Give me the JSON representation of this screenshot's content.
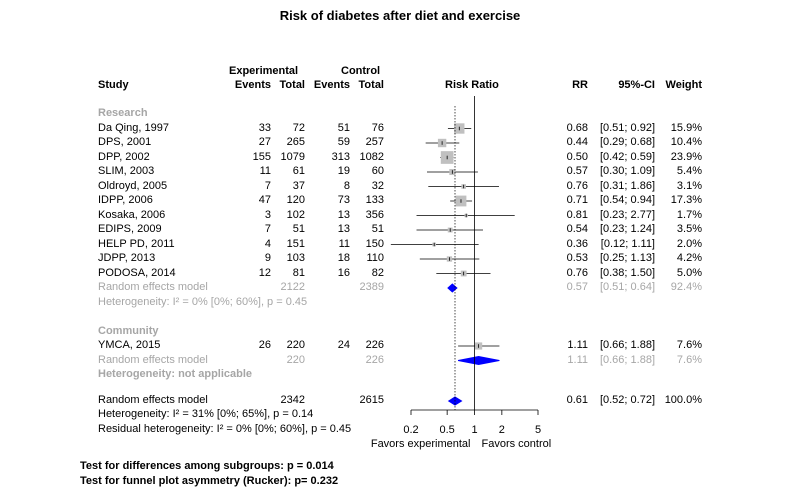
{
  "title": "Risk of diabetes after diet and exercise",
  "headers": {
    "experimental": "Experimental",
    "control": "Control",
    "study": "Study",
    "events": "Events",
    "total": "Total",
    "risk_ratio": "Risk Ratio",
    "rr": "RR",
    "ci": "95%-CI",
    "weight": "Weight"
  },
  "colors": {
    "square": "#c0c0c0",
    "diamond": "#0000ff",
    "grey_text": "#a6a6a6"
  },
  "chart_data": {
    "type": "forest",
    "title": "Risk of diabetes after diet and exercise",
    "xlabel_left": "Favors experimental",
    "xlabel_right": "Favors control",
    "x_scale": "log",
    "xlim": [
      0.2,
      5
    ],
    "xticks": [
      0.2,
      0.5,
      1,
      2,
      5
    ],
    "xtick_labels": [
      "0.2",
      "0.5",
      "1",
      "2",
      "5"
    ],
    "null_line": 1,
    "overall_line": 0.61,
    "subgroups": [
      {
        "name": "Research",
        "studies": [
          {
            "study": "Da Qing, 1997",
            "e_events": 33,
            "e_total": 72,
            "c_events": 51,
            "c_total": 76,
            "rr": 0.68,
            "lower": 0.51,
            "upper": 0.92,
            "rr_text": "0.68",
            "ci_text": "[0.51; 0.92]",
            "weight": 15.9,
            "weight_text": "15.9%"
          },
          {
            "study": "DPS, 2001",
            "e_events": 27,
            "e_total": 265,
            "c_events": 59,
            "c_total": 257,
            "rr": 0.44,
            "lower": 0.29,
            "upper": 0.68,
            "rr_text": "0.44",
            "ci_text": "[0.29; 0.68]",
            "weight": 10.4,
            "weight_text": "10.4%"
          },
          {
            "study": "DPP, 2002",
            "e_events": 155,
            "e_total": 1079,
            "c_events": 313,
            "c_total": 1082,
            "rr": 0.5,
            "lower": 0.42,
            "upper": 0.59,
            "rr_text": "0.50",
            "ci_text": "[0.42; 0.59]",
            "weight": 23.9,
            "weight_text": "23.9%"
          },
          {
            "study": "SLIM, 2003",
            "e_events": 11,
            "e_total": 61,
            "c_events": 19,
            "c_total": 60,
            "rr": 0.57,
            "lower": 0.3,
            "upper": 1.09,
            "rr_text": "0.57",
            "ci_text": "[0.30; 1.09]",
            "weight": 5.4,
            "weight_text": "5.4%"
          },
          {
            "study": "Oldroyd, 2005",
            "e_events": 7,
            "e_total": 37,
            "c_events": 8,
            "c_total": 32,
            "rr": 0.76,
            "lower": 0.31,
            "upper": 1.86,
            "rr_text": "0.76",
            "ci_text": "[0.31; 1.86]",
            "weight": 3.1,
            "weight_text": "3.1%"
          },
          {
            "study": "IDPP, 2006",
            "e_events": 47,
            "e_total": 120,
            "c_events": 73,
            "c_total": 133,
            "rr": 0.71,
            "lower": 0.54,
            "upper": 0.94,
            "rr_text": "0.71",
            "ci_text": "[0.54; 0.94]",
            "weight": 17.3,
            "weight_text": "17.3%"
          },
          {
            "study": "Kosaka, 2006",
            "e_events": 3,
            "e_total": 102,
            "c_events": 13,
            "c_total": 356,
            "rr": 0.81,
            "lower": 0.23,
            "upper": 2.77,
            "rr_text": "0.81",
            "ci_text": "[0.23; 2.77]",
            "weight": 1.7,
            "weight_text": "1.7%"
          },
          {
            "study": "EDIPS, 2009",
            "e_events": 7,
            "e_total": 51,
            "c_events": 13,
            "c_total": 51,
            "rr": 0.54,
            "lower": 0.23,
            "upper": 1.24,
            "rr_text": "0.54",
            "ci_text": "[0.23; 1.24]",
            "weight": 3.5,
            "weight_text": "3.5%"
          },
          {
            "study": "HELP PD, 2011",
            "e_events": 4,
            "e_total": 151,
            "c_events": 11,
            "c_total": 150,
            "rr": 0.36,
            "lower": 0.12,
            "upper": 1.11,
            "rr_text": "0.36",
            "ci_text": "[0.12; 1.11]",
            "weight": 2.0,
            "weight_text": "2.0%"
          },
          {
            "study": "JDPP, 2013",
            "e_events": 9,
            "e_total": 103,
            "c_events": 18,
            "c_total": 110,
            "rr": 0.53,
            "lower": 0.25,
            "upper": 1.13,
            "rr_text": "0.53",
            "ci_text": "[0.25; 1.13]",
            "weight": 4.2,
            "weight_text": "4.2%"
          },
          {
            "study": "PODOSA, 2014",
            "e_events": 12,
            "e_total": 81,
            "c_events": 16,
            "c_total": 82,
            "rr": 0.76,
            "lower": 0.38,
            "upper": 1.5,
            "rr_text": "0.76",
            "ci_text": "[0.38; 1.50]",
            "weight": 5.0,
            "weight_text": "5.0%"
          }
        ],
        "pooled": {
          "label": "Random effects model",
          "e_total": 2122,
          "c_total": 2389,
          "rr": 0.57,
          "lower": 0.51,
          "upper": 0.64,
          "rr_text": "0.57",
          "ci_text": "[0.51; 0.64]",
          "weight_text": "92.4%"
        },
        "heterogeneity": "Heterogeneity: I² = 0% [0%; 60%], p = 0.45"
      },
      {
        "name": "Community",
        "studies": [
          {
            "study": "YMCA, 2015",
            "e_events": 26,
            "e_total": 220,
            "c_events": 24,
            "c_total": 226,
            "rr": 1.11,
            "lower": 0.66,
            "upper": 1.88,
            "rr_text": "1.11",
            "ci_text": "[0.66; 1.88]",
            "weight": 7.6,
            "weight_text": "7.6%"
          }
        ],
        "pooled": {
          "label": "Random effects model",
          "e_total": 220,
          "c_total": 226,
          "rr": 1.11,
          "lower": 0.66,
          "upper": 1.88,
          "rr_text": "1.11",
          "ci_text": "[0.66; 1.88]",
          "weight_text": "7.6%"
        },
        "heterogeneity": "Heterogeneity: not applicable"
      }
    ],
    "overall": {
      "label": "Random effects model",
      "e_total": 2342,
      "c_total": 2615,
      "rr": 0.61,
      "lower": 0.52,
      "upper": 0.72,
      "rr_text": "0.61",
      "ci_text": "[0.52; 0.72]",
      "weight_text": "100.0%"
    },
    "overall_heterogeneity": "Heterogeneity: I² = 31% [0%; 65%], p = 0.14",
    "residual_heterogeneity": "Residual heterogeneity: I² = 0% [0%; 60%], p = 0.45"
  },
  "footer": {
    "subgroup_test": "Test for differences among subgroups: p = 0.014",
    "funnel_test": "Test for funnel plot asymmetry (Rucker): p= 0.232"
  }
}
